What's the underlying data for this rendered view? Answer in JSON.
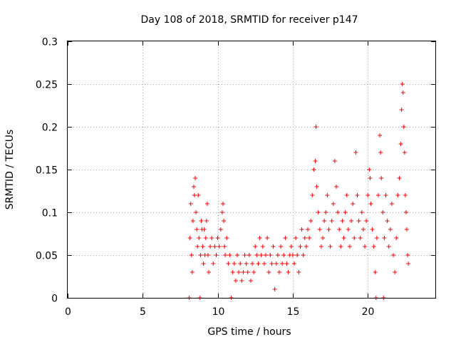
{
  "chart_data": {
    "type": "scatter",
    "title": "Day 108 of 2018, SRMTID for receiver p147",
    "xlabel": "GPS time / hours",
    "ylabel": "SRMTID / TECUs",
    "xlim": [
      0,
      24.5
    ],
    "ylim": [
      0,
      0.3
    ],
    "xticks": [
      0,
      5,
      10,
      15,
      20
    ],
    "xtick_labels": [
      "0",
      "5",
      "10",
      "15",
      "20"
    ],
    "yticks": [
      0,
      0.05,
      0.1,
      0.15,
      0.2,
      0.25,
      0.3
    ],
    "ytick_labels": [
      "0",
      "0.05",
      "0.1",
      "0.15",
      "0.2",
      "0.25",
      "0.3"
    ],
    "grid": true,
    "marker": "+",
    "series": [
      {
        "name": "SRMTID",
        "color": "#ff0000",
        "points": [
          [
            8.1,
            0.0
          ],
          [
            8.15,
            0.07
          ],
          [
            8.2,
            0.11
          ],
          [
            8.25,
            0.05
          ],
          [
            8.3,
            0.03
          ],
          [
            8.35,
            0.09
          ],
          [
            8.4,
            0.13
          ],
          [
            8.45,
            0.12
          ],
          [
            8.5,
            0.14
          ],
          [
            8.55,
            0.1
          ],
          [
            8.6,
            0.08
          ],
          [
            8.65,
            0.06
          ],
          [
            8.7,
            0.12
          ],
          [
            8.75,
            0.07
          ],
          [
            8.8,
            0.0
          ],
          [
            8.85,
            0.05
          ],
          [
            8.9,
            0.09
          ],
          [
            8.95,
            0.08
          ],
          [
            9.0,
            0.06
          ],
          [
            9.05,
            0.04
          ],
          [
            9.1,
            0.08
          ],
          [
            9.15,
            0.05
          ],
          [
            9.2,
            0.07
          ],
          [
            9.25,
            0.09
          ],
          [
            9.3,
            0.11
          ],
          [
            9.35,
            0.05
          ],
          [
            9.4,
            0.03
          ],
          [
            9.5,
            0.06
          ],
          [
            9.6,
            0.07
          ],
          [
            9.7,
            0.04
          ],
          [
            9.8,
            0.06
          ],
          [
            9.9,
            0.05
          ],
          [
            10.0,
            0.07
          ],
          [
            10.1,
            0.06
          ],
          [
            10.2,
            0.08
          ],
          [
            10.3,
            0.1
          ],
          [
            10.35,
            0.11
          ],
          [
            10.4,
            0.09
          ],
          [
            10.45,
            0.06
          ],
          [
            10.5,
            0.05
          ],
          [
            10.6,
            0.07
          ],
          [
            10.7,
            0.04
          ],
          [
            10.8,
            0.05
          ],
          [
            10.9,
            0.0
          ],
          [
            11.0,
            0.03
          ],
          [
            11.1,
            0.04
          ],
          [
            11.2,
            0.02
          ],
          [
            11.3,
            0.05
          ],
          [
            11.4,
            0.03
          ],
          [
            11.5,
            0.04
          ],
          [
            11.6,
            0.02
          ],
          [
            11.7,
            0.03
          ],
          [
            11.8,
            0.05
          ],
          [
            11.9,
            0.04
          ],
          [
            12.0,
            0.03
          ],
          [
            12.1,
            0.05
          ],
          [
            12.2,
            0.02
          ],
          [
            12.3,
            0.04
          ],
          [
            12.4,
            0.03
          ],
          [
            12.5,
            0.06
          ],
          [
            12.6,
            0.05
          ],
          [
            12.7,
            0.04
          ],
          [
            12.8,
            0.07
          ],
          [
            12.9,
            0.05
          ],
          [
            13.0,
            0.06
          ],
          [
            13.1,
            0.04
          ],
          [
            13.2,
            0.05
          ],
          [
            13.3,
            0.07
          ],
          [
            13.4,
            0.03
          ],
          [
            13.5,
            0.05
          ],
          [
            13.6,
            0.04
          ],
          [
            13.7,
            0.06
          ],
          [
            13.8,
            0.01
          ],
          [
            13.9,
            0.04
          ],
          [
            14.0,
            0.05
          ],
          [
            14.1,
            0.03
          ],
          [
            14.2,
            0.06
          ],
          [
            14.3,
            0.04
          ],
          [
            14.4,
            0.05
          ],
          [
            14.5,
            0.07
          ],
          [
            14.6,
            0.04
          ],
          [
            14.7,
            0.03
          ],
          [
            14.8,
            0.05
          ],
          [
            14.9,
            0.06
          ],
          [
            15.0,
            0.05
          ],
          [
            15.1,
            0.04
          ],
          [
            15.2,
            0.07
          ],
          [
            15.3,
            0.05
          ],
          [
            15.4,
            0.03
          ],
          [
            15.5,
            0.06
          ],
          [
            15.6,
            0.08
          ],
          [
            15.7,
            0.05
          ],
          [
            15.8,
            0.07
          ],
          [
            15.9,
            0.06
          ],
          [
            16.0,
            0.08
          ],
          [
            16.1,
            0.07
          ],
          [
            16.2,
            0.09
          ],
          [
            16.3,
            0.12
          ],
          [
            16.4,
            0.15
          ],
          [
            16.5,
            0.16
          ],
          [
            16.55,
            0.2
          ],
          [
            16.6,
            0.13
          ],
          [
            16.7,
            0.1
          ],
          [
            16.8,
            0.08
          ],
          [
            16.9,
            0.06
          ],
          [
            17.0,
            0.07
          ],
          [
            17.1,
            0.09
          ],
          [
            17.2,
            0.1
          ],
          [
            17.3,
            0.12
          ],
          [
            17.4,
            0.08
          ],
          [
            17.5,
            0.06
          ],
          [
            17.6,
            0.09
          ],
          [
            17.7,
            0.11
          ],
          [
            17.8,
            0.16
          ],
          [
            17.9,
            0.13
          ],
          [
            18.0,
            0.1
          ],
          [
            18.1,
            0.08
          ],
          [
            18.2,
            0.06
          ],
          [
            18.3,
            0.09
          ],
          [
            18.4,
            0.07
          ],
          [
            18.5,
            0.1
          ],
          [
            18.6,
            0.12
          ],
          [
            18.7,
            0.08
          ],
          [
            18.8,
            0.06
          ],
          [
            18.9,
            0.09
          ],
          [
            19.0,
            0.11
          ],
          [
            19.1,
            0.07
          ],
          [
            19.2,
            0.17
          ],
          [
            19.3,
            0.12
          ],
          [
            19.4,
            0.09
          ],
          [
            19.5,
            0.07
          ],
          [
            19.6,
            0.1
          ],
          [
            19.7,
            0.08
          ],
          [
            19.8,
            0.06
          ],
          [
            19.9,
            0.09
          ],
          [
            20.0,
            0.12
          ],
          [
            20.1,
            0.15
          ],
          [
            20.15,
            0.14
          ],
          [
            20.2,
            0.11
          ],
          [
            20.3,
            0.08
          ],
          [
            20.4,
            0.06
          ],
          [
            20.5,
            0.03
          ],
          [
            20.55,
            0.0
          ],
          [
            20.6,
            0.07
          ],
          [
            20.7,
            0.12
          ],
          [
            20.8,
            0.19
          ],
          [
            20.85,
            0.17
          ],
          [
            20.9,
            0.14
          ],
          [
            21.0,
            0.1
          ],
          [
            21.05,
            0.0
          ],
          [
            21.1,
            0.07
          ],
          [
            21.2,
            0.12
          ],
          [
            21.3,
            0.09
          ],
          [
            21.4,
            0.06
          ],
          [
            21.5,
            0.08
          ],
          [
            21.6,
            0.11
          ],
          [
            21.7,
            0.05
          ],
          [
            21.8,
            0.03
          ],
          [
            21.9,
            0.07
          ],
          [
            22.0,
            0.12
          ],
          [
            22.1,
            0.14
          ],
          [
            22.2,
            0.18
          ],
          [
            22.25,
            0.22
          ],
          [
            22.3,
            0.25
          ],
          [
            22.35,
            0.24
          ],
          [
            22.4,
            0.2
          ],
          [
            22.45,
            0.17
          ],
          [
            22.5,
            0.12
          ],
          [
            22.55,
            0.1
          ],
          [
            22.6,
            0.08
          ],
          [
            22.65,
            0.05
          ],
          [
            22.7,
            0.04
          ]
        ]
      }
    ]
  }
}
